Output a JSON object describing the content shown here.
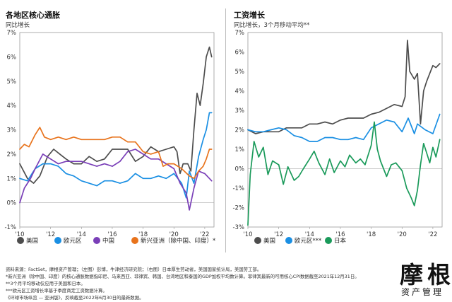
{
  "chart_data": [
    {
      "type": "line",
      "title": "各地区核心通胀",
      "subtitle": "同比增长",
      "ylim": [
        -1,
        7
      ],
      "yticks": [
        "-1%",
        "0%",
        "1%",
        "2%",
        "3%",
        "4%",
        "5%",
        "6%",
        "7%"
      ],
      "xlim": [
        2010,
        2022.6
      ],
      "xticks": [
        "'10",
        "'12",
        "'14",
        "'16",
        "'18",
        "'20",
        "'22"
      ],
      "series": [
        {
          "name": "美国",
          "color": "#4d4d4d",
          "marker": "circle",
          "x": [
            2010,
            2010.5,
            2010.9,
            2011.3,
            2011.8,
            2012.2,
            2012.6,
            2013.0,
            2013.5,
            2014.0,
            2014.5,
            2015.0,
            2015.5,
            2016.0,
            2016.5,
            2017.0,
            2017.5,
            2018.0,
            2018.5,
            2019.0,
            2019.5,
            2020.0,
            2020.2,
            2020.4,
            2020.6,
            2020.9,
            2021.1,
            2021.3,
            2021.5,
            2021.7,
            2021.9,
            2022.1,
            2022.3,
            2022.45
          ],
          "y": [
            1.6,
            1.0,
            0.8,
            1.1,
            1.9,
            2.2,
            2.0,
            1.8,
            1.6,
            1.6,
            1.9,
            1.7,
            1.8,
            2.2,
            2.2,
            2.2,
            1.7,
            1.9,
            2.3,
            2.1,
            2.2,
            2.3,
            2.1,
            1.2,
            1.6,
            1.6,
            1.3,
            3.0,
            4.5,
            4.0,
            4.9,
            6.0,
            6.4,
            6.0
          ]
        },
        {
          "name": "欧元区",
          "color": "#1a8fe3",
          "marker": "circle",
          "x": [
            2010,
            2010.5,
            2011,
            2011.5,
            2012,
            2012.5,
            2013,
            2013.5,
            2014,
            2014.5,
            2015,
            2015.5,
            2016,
            2016.5,
            2017,
            2017.5,
            2018,
            2018.5,
            2019,
            2019.5,
            2020,
            2020.5,
            2020.8,
            2021,
            2021.3,
            2021.6,
            2021.9,
            2022.1,
            2022.3,
            2022.45
          ],
          "y": [
            1.0,
            0.9,
            1.4,
            1.6,
            1.6,
            1.5,
            1.2,
            1.1,
            0.9,
            0.8,
            0.7,
            0.9,
            0.9,
            0.8,
            0.9,
            1.2,
            1.0,
            1.0,
            1.1,
            1.0,
            1.2,
            0.8,
            0.2,
            1.3,
            0.8,
            1.9,
            2.6,
            3.0,
            3.7,
            3.7
          ]
        },
        {
          "name": "中国",
          "color": "#7a3fb8",
          "marker": "circle",
          "x": [
            2010,
            2010.3,
            2010.7,
            2011,
            2011.5,
            2012,
            2012.5,
            2013,
            2013.5,
            2014,
            2014.5,
            2015,
            2015.5,
            2016,
            2016.5,
            2017,
            2017.5,
            2018,
            2018.5,
            2019,
            2019.5,
            2020,
            2020.4,
            2020.8,
            2021.0,
            2021.3,
            2021.6,
            2022,
            2022.3,
            2022.45
          ],
          "y": [
            0.0,
            0.6,
            1.0,
            1.4,
            2.0,
            1.8,
            1.6,
            1.7,
            1.7,
            1.7,
            1.6,
            1.5,
            1.6,
            1.5,
            1.7,
            2.1,
            2.2,
            2.0,
            1.8,
            1.8,
            1.6,
            1.4,
            0.8,
            0.4,
            -0.3,
            0.6,
            1.3,
            1.2,
            1.0,
            0.9
          ]
        },
        {
          "name": "新兴亚洲（除中国、印度）*",
          "color": "#e8731c",
          "marker": "circle",
          "x": [
            2010,
            2010.3,
            2010.6,
            2011,
            2011.3,
            2011.6,
            2012,
            2012.5,
            2013,
            2013.5,
            2014,
            2014.5,
            2015,
            2015.5,
            2016,
            2016.5,
            2017,
            2017.5,
            2018,
            2018.5,
            2019,
            2019.3,
            2019.6,
            2020,
            2020.5,
            2021,
            2021.3,
            2021.6,
            2021.9,
            2022.1,
            2022.3,
            2022.45
          ],
          "y": [
            2.2,
            2.4,
            2.3,
            2.8,
            3.1,
            2.7,
            2.6,
            2.7,
            2.6,
            2.7,
            2.6,
            2.6,
            2.6,
            2.6,
            2.7,
            2.7,
            2.5,
            2.5,
            2.1,
            2.0,
            2.1,
            1.5,
            1.6,
            1.6,
            1.4,
            1.1,
            1.0,
            1.3,
            1.5,
            1.8,
            2.2,
            2.2
          ]
        }
      ]
    },
    {
      "type": "line",
      "title": "工资增长",
      "subtitle": "同比增长，3个月移动平均**",
      "ylim": [
        -3,
        7
      ],
      "yticks": [
        "-3%",
        "-2%",
        "-1%",
        "0%",
        "1%",
        "2%",
        "3%",
        "4%",
        "5%",
        "6%",
        "7%"
      ],
      "xlim": [
        2010,
        2022.6
      ],
      "xticks": [
        "'10",
        "'12",
        "'14",
        "'16",
        "'18",
        "'20",
        "'22"
      ],
      "series": [
        {
          "name": "美国",
          "color": "#4d4d4d",
          "marker": "circle",
          "x": [
            2010,
            2010.5,
            2011,
            2011.5,
            2012,
            2012.5,
            2013,
            2013.5,
            2014,
            2014.5,
            2015,
            2015.5,
            2016,
            2016.5,
            2017,
            2017.5,
            2018,
            2018.5,
            2019,
            2019.5,
            2020,
            2020.2,
            2020.35,
            2020.5,
            2020.8,
            2021.0,
            2021.2,
            2021.4,
            2021.6,
            2021.8,
            2022,
            2022.2,
            2022.45
          ],
          "y": [
            2.0,
            1.8,
            1.9,
            1.9,
            1.9,
            2.1,
            2.1,
            2.1,
            2.3,
            2.3,
            2.4,
            2.3,
            2.5,
            2.6,
            2.6,
            2.6,
            2.8,
            2.9,
            3.1,
            3.3,
            3.2,
            3.7,
            6.6,
            5.0,
            4.6,
            4.9,
            2.3,
            4.0,
            4.5,
            4.9,
            5.3,
            5.2,
            5.4
          ]
        },
        {
          "name": "欧元区***",
          "color": "#1a8fe3",
          "marker": "circle",
          "x": [
            2010,
            2010.5,
            2011,
            2011.5,
            2012,
            2012.5,
            2013,
            2013.5,
            2014,
            2014.5,
            2015,
            2015.5,
            2016,
            2016.5,
            2017,
            2017.5,
            2018,
            2018.5,
            2019,
            2019.5,
            2020,
            2020.4,
            2020.8,
            2021,
            2021.5,
            2022,
            2022.45
          ],
          "y": [
            2.0,
            1.9,
            1.9,
            2.0,
            2.1,
            2.0,
            1.7,
            1.6,
            1.4,
            1.4,
            1.6,
            1.6,
            1.5,
            1.5,
            1.6,
            1.5,
            2.1,
            2.3,
            2.5,
            2.4,
            1.9,
            2.6,
            1.8,
            2.3,
            2.0,
            1.8,
            2.8
          ]
        },
        {
          "name": "日本",
          "color": "#1a9a5a",
          "marker": "circle",
          "x": [
            2010,
            2010.15,
            2010.4,
            2010.7,
            2011,
            2011.3,
            2011.6,
            2012,
            2012.3,
            2012.6,
            2013,
            2013.3,
            2013.6,
            2014,
            2014.3,
            2014.6,
            2015,
            2015.3,
            2015.6,
            2016,
            2016.3,
            2016.6,
            2017,
            2017.3,
            2017.6,
            2018,
            2018.2,
            2018.4,
            2018.6,
            2019,
            2019.3,
            2019.6,
            2020,
            2020.3,
            2020.6,
            2020.8,
            2021,
            2021.2,
            2021.4,
            2021.6,
            2021.8,
            2022,
            2022.2,
            2022.45
          ],
          "y": [
            -2.9,
            -0.3,
            1.4,
            0.6,
            1.1,
            -0.3,
            0.4,
            0.2,
            -0.8,
            0.1,
            -0.6,
            -0.4,
            0.0,
            0.5,
            0.9,
            0.3,
            -0.3,
            0.5,
            -0.2,
            0.4,
            0.1,
            0.7,
            0.3,
            0.5,
            0.2,
            1.2,
            2.4,
            1.0,
            0.4,
            -0.4,
            0.2,
            0.3,
            -0.1,
            -1.0,
            -1.5,
            -1.9,
            -1.1,
            0.2,
            1.3,
            0.8,
            0.3,
            1.1,
            0.6,
            1.5
          ]
        }
      ]
    }
  ],
  "footnotes": [
    "资料来源：FactSet，摩根资产管理；（左图）彭博，牛津经济研究院；（右图）日本厚生劳动省，美国国家统计局，美国劳工部。",
    "*新兴亚洲（除中国、印度）的核心通胀数据指印尼、马来西亚、菲律宾、韩国、台湾地区和泰国的GDP加权平均数计算。菲律宾最新的可用核心CPI数据截至2021年12月31日。",
    "**3个月平均移动仅应用于美国和日本。",
    "***欧元区工资增长率基于季度商定工资数据计算。",
    "《环球市场纵览 — 亚洲版》，反映截至2022年6月30日的最新数据。"
  ],
  "logo": {
    "main": "摩根",
    "sub": "资产管理"
  }
}
